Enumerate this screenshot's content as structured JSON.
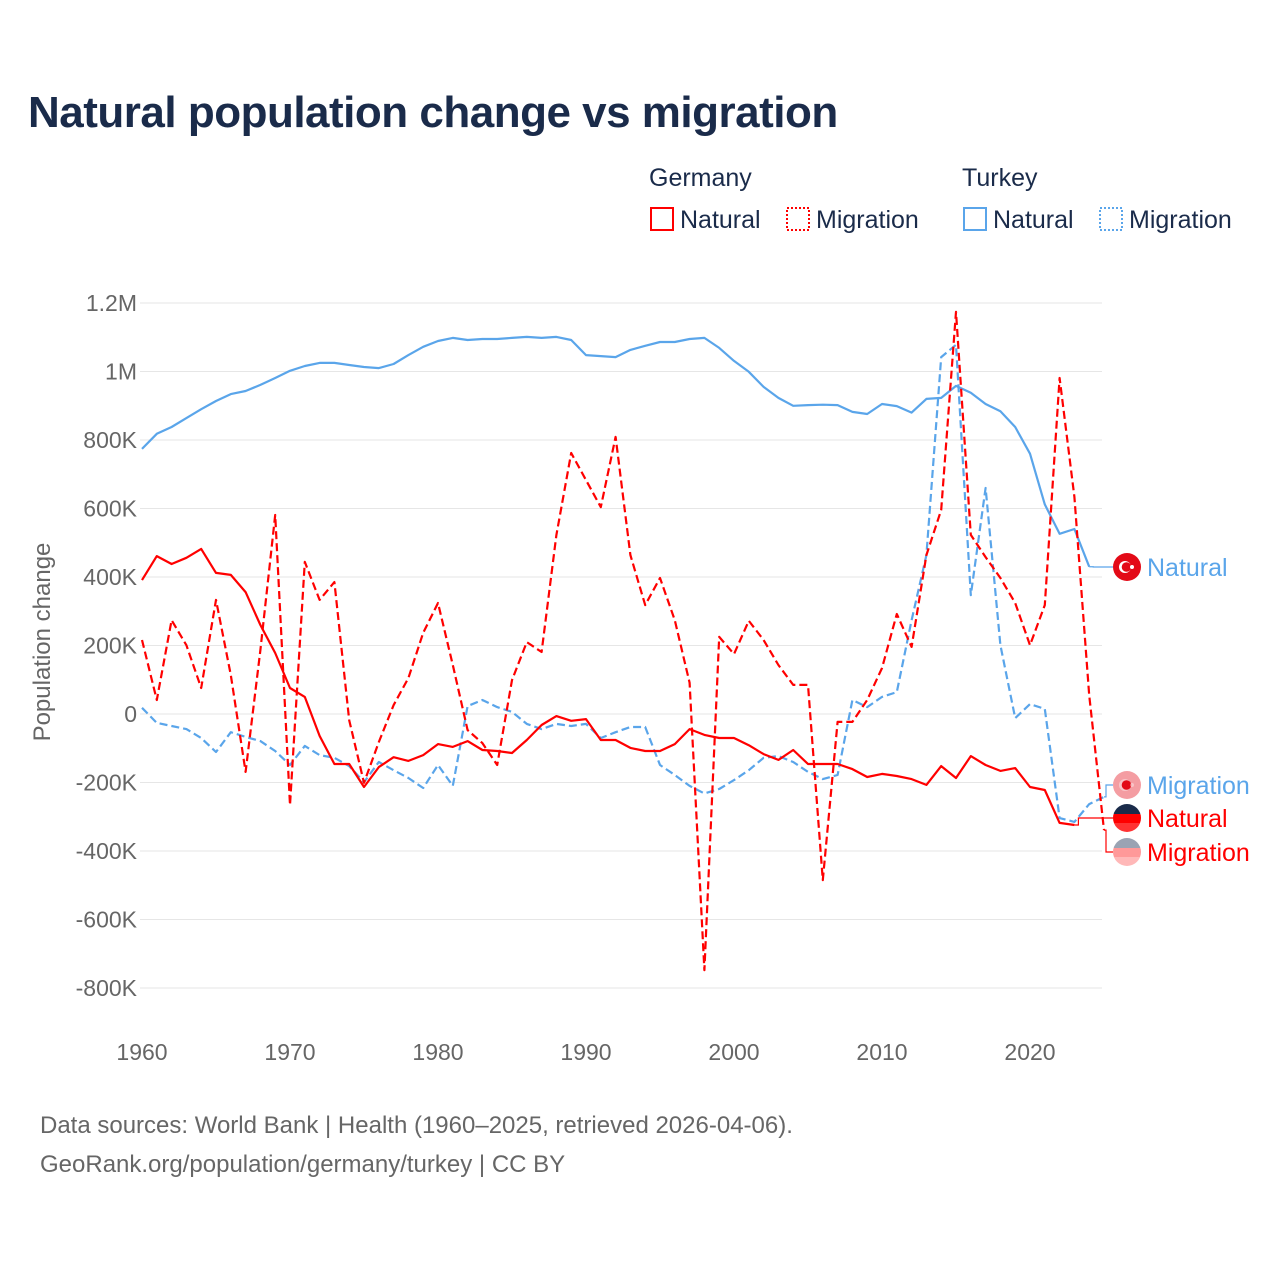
{
  "colors": {
    "germany": "#ff0000",
    "turkey": "#5aa5ea",
    "title": "#1a2b4a",
    "grid": "#e6e6e6",
    "text": "#666666"
  },
  "chart_data": {
    "type": "line",
    "title": "Natural population change vs migration",
    "ylabel": "Population change",
    "xlabel": "",
    "xlim": [
      1960,
      2025
    ],
    "ylim": [
      -800000,
      1200000
    ],
    "grid": true,
    "legend_placement": "top-right",
    "x_ticks": [
      "1960",
      "1970",
      "1980",
      "1990",
      "2000",
      "2010",
      "2020"
    ],
    "y_ticks": [
      {
        "value": 1200000,
        "label": "1.2M"
      },
      {
        "value": 1000000,
        "label": "1M"
      },
      {
        "value": 800000,
        "label": "800K"
      },
      {
        "value": 600000,
        "label": "600K"
      },
      {
        "value": 400000,
        "label": "400K"
      },
      {
        "value": 200000,
        "label": "200K"
      },
      {
        "value": 0,
        "label": "0"
      },
      {
        "value": -200000,
        "label": "-200K"
      },
      {
        "value": -400000,
        "label": "-400K"
      },
      {
        "value": -600000,
        "label": "-600K"
      },
      {
        "value": -800000,
        "label": "-800K"
      }
    ],
    "legend": {
      "groups": [
        {
          "country": "Germany",
          "items": [
            "Natural",
            "Migration"
          ]
        },
        {
          "country": "Turkey",
          "items": [
            "Natural",
            "Migration"
          ]
        }
      ]
    },
    "series": [
      {
        "name": "Turkey Natural",
        "country": "turkey",
        "kind": "natural",
        "end_label": "Natural",
        "start_year": 1960,
        "values_k": [
          774,
          818,
          838,
          864,
          890,
          914,
          934,
          943,
          961,
          981,
          1002,
          1016,
          1025,
          1025,
          1019,
          1013,
          1010,
          1022,
          1048,
          1072,
          1089,
          1098,
          1092,
          1095,
          1095,
          1098,
          1101,
          1098,
          1101,
          1092,
          1048,
          1045,
          1042,
          1063,
          1075,
          1086,
          1086,
          1095,
          1098,
          1069,
          1031,
          999,
          955,
          923,
          900,
          902,
          903,
          902,
          882,
          876,
          905,
          899,
          880,
          920,
          923,
          958,
          938,
          905,
          884,
          838,
          760,
          612,
          526,
          540,
          430
        ]
      },
      {
        "name": "Turkey Migration",
        "country": "turkey",
        "kind": "migration",
        "end_label": "Migration",
        "start_year": 1960,
        "values_k": [
          18,
          -26,
          -35,
          -44,
          -70,
          -111,
          -53,
          -67,
          -79,
          -108,
          -149,
          -93,
          -120,
          -128,
          -152,
          -199,
          -140,
          -164,
          -187,
          -216,
          -149,
          -210,
          23,
          41,
          20,
          6,
          -29,
          -44,
          -29,
          -35,
          -29,
          -70,
          -53,
          -38,
          -38,
          -149,
          -178,
          -210,
          -232,
          -219,
          -193,
          -164,
          -128,
          -123,
          -140,
          -169,
          -190,
          -178,
          41,
          20,
          50,
          64,
          274,
          464,
          1042,
          1078,
          347,
          660,
          201,
          -12,
          29,
          15,
          -304,
          -315,
          -263,
          -242
        ]
      },
      {
        "name": "Germany Natural",
        "country": "germany",
        "kind": "natural",
        "end_label": "Natural",
        "start_year": 1960,
        "values_k": [
          391,
          461,
          438,
          456,
          482,
          412,
          406,
          356,
          260,
          178,
          76,
          50,
          -64,
          -146,
          -146,
          -213,
          -155,
          -126,
          -137,
          -120,
          -88,
          -96,
          -79,
          -105,
          -108,
          -114,
          -76,
          -32,
          -6,
          -20,
          -15,
          -76,
          -76,
          -99,
          -108,
          -108,
          -88,
          -44,
          -61,
          -70,
          -70,
          -91,
          -117,
          -134,
          -105,
          -146,
          -146,
          -146,
          -161,
          -184,
          -175,
          -181,
          -190,
          -207,
          -152,
          -187,
          -123,
          -149,
          -166,
          -158,
          -213,
          -222,
          -318,
          -324
        ]
      },
      {
        "name": "Germany Migration",
        "country": "germany",
        "kind": "migration",
        "end_label": "Migration",
        "start_year": 1960,
        "values_k": [
          216,
          41,
          274,
          201,
          76,
          333,
          114,
          -169,
          187,
          581,
          -266,
          444,
          333,
          385,
          -18,
          -201,
          -82,
          26,
          105,
          237,
          324,
          143,
          -47,
          -85,
          -149,
          99,
          210,
          181,
          523,
          762,
          683,
          604,
          809,
          464,
          318,
          397,
          274,
          91,
          -748,
          225,
          175,
          272,
          216,
          143,
          85,
          85,
          -485,
          -23,
          -23,
          41,
          134,
          292,
          196,
          464,
          596,
          1174,
          523,
          458,
          397,
          324,
          201,
          318,
          981,
          634,
          55,
          -339
        ]
      }
    ]
  },
  "footer": {
    "line1": "Data sources: World Bank | Health (1960–2025, retrieved 2026-04-06).",
    "line2": "GeoRank.org/population/germany/turkey | CC BY"
  }
}
